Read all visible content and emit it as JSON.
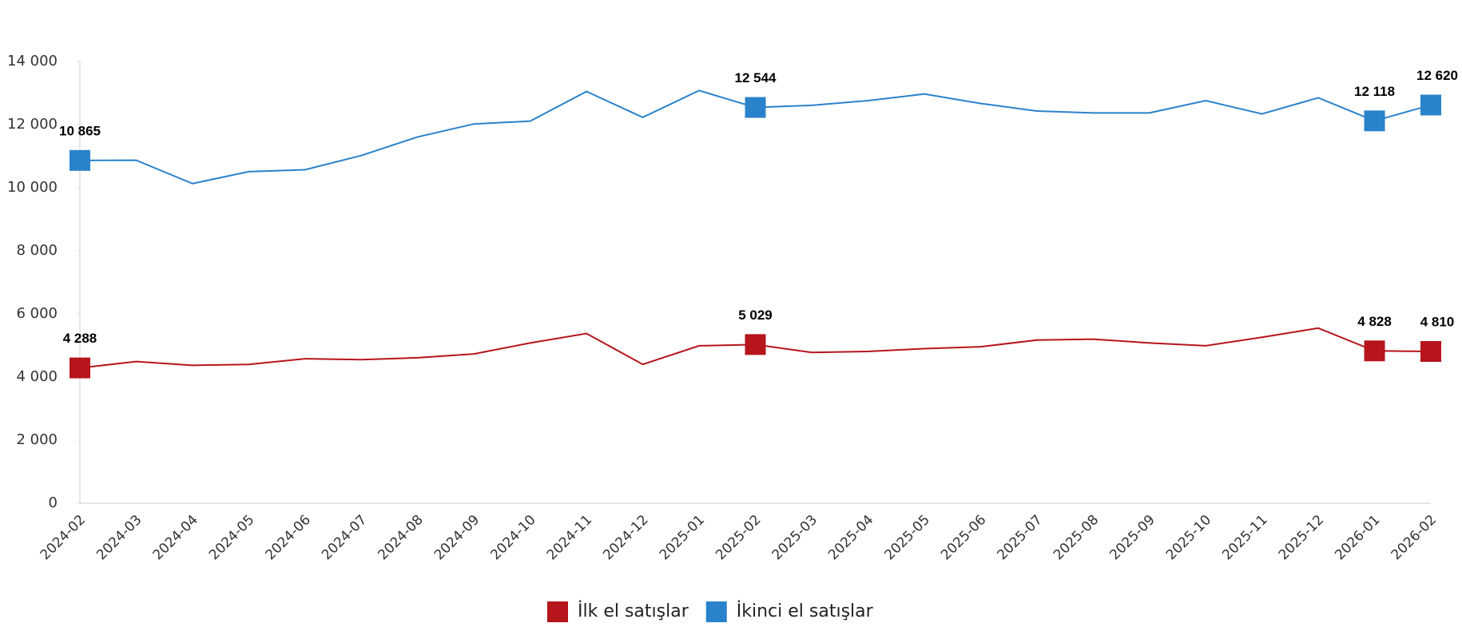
{
  "chart_data": {
    "type": "line",
    "categories": [
      "2024-02",
      "2024-03",
      "2024-04",
      "2024-05",
      "2024-06",
      "2024-07",
      "2024-08",
      "2024-09",
      "2024-10",
      "2024-11",
      "2024-12",
      "2025-01",
      "2025-02",
      "2025-03",
      "2025-04",
      "2025-05",
      "2025-06",
      "2025-07",
      "2025-08",
      "2025-09",
      "2025-10",
      "2025-11",
      "2025-12",
      "2026-01",
      "2026-02"
    ],
    "series": [
      {
        "name": "İlk el satışlar",
        "color": "#b5151b",
        "values": [
          4288,
          4490,
          4370,
          4400,
          4580,
          4550,
          4610,
          4730,
          5080,
          5380,
          4400,
          4990,
          5029,
          4780,
          4810,
          4900,
          4960,
          5170,
          5200,
          5080,
          4990,
          5260,
          5550,
          4828,
          4810
        ],
        "value_labels": [
          "4 288",
          null,
          null,
          null,
          null,
          null,
          null,
          null,
          null,
          null,
          null,
          null,
          "5 029",
          null,
          null,
          null,
          null,
          null,
          null,
          null,
          null,
          null,
          null,
          "4 828",
          "4 810"
        ]
      },
      {
        "name": "İkinci el satışlar",
        "color": "#2a82cb",
        "values": [
          10865,
          10870,
          10130,
          10510,
          10570,
          11020,
          11610,
          12020,
          12110,
          13050,
          12230,
          13080,
          12544,
          12610,
          12760,
          12970,
          12670,
          12430,
          12370,
          12370,
          12760,
          12340,
          12850,
          12118,
          12620
        ],
        "value_labels": [
          "10 865",
          null,
          null,
          null,
          null,
          null,
          null,
          null,
          null,
          null,
          null,
          null,
          "12 544",
          null,
          null,
          null,
          null,
          null,
          null,
          null,
          null,
          null,
          null,
          "12 118",
          "12 620"
        ]
      }
    ],
    "ylim": [
      0,
      14000
    ],
    "yticks": [
      0,
      {
        "value": 2000,
        "label": "2 000"
      },
      {
        "value": 4000,
        "label": "4 000"
      },
      {
        "value": 6000,
        "label": "6 000"
      },
      {
        "value": 8000,
        "label": "8 000"
      },
      {
        "value": 10000,
        "label": "10 000"
      },
      {
        "value": 12000,
        "label": "12 000"
      },
      {
        "value": 14000,
        "label": "14 000"
      }
    ],
    "grid": false,
    "legend": "bottom"
  }
}
